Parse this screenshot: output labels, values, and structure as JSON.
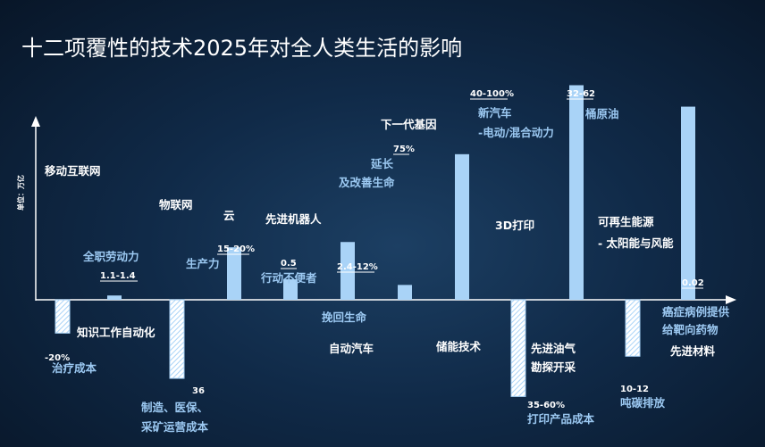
{
  "chart_data": {
    "type": "bar",
    "title": "十二项覆性的技术2025年对全人类生活的影响",
    "ylabel": "单位：万亿",
    "colors": {
      "bar_fill": "#a9d3f7",
      "white_text": "#ffffff",
      "blue_text": "#9cc9f2",
      "axis": "#ffffff"
    },
    "technologies": [
      {
        "label_lines": [
          "移动互联网"
        ],
        "label_color": "white"
      },
      {
        "label_lines": [
          "知识工作自动化"
        ],
        "label_color": "white"
      },
      {
        "label_lines": [
          "物联网"
        ],
        "label_color": "white"
      },
      {
        "label_lines": [
          "云"
        ],
        "label_color": "white"
      },
      {
        "label_lines": [
          "先进机器人"
        ],
        "label_color": "white"
      },
      {
        "label_lines": [
          "自动汽车"
        ],
        "label_color": "white"
      },
      {
        "label_lines": [
          "下一代基因"
        ],
        "label_color": "white"
      },
      {
        "label_lines": [
          "储能技术"
        ],
        "label_color": "white"
      },
      {
        "label_lines": [
          "3D打印"
        ],
        "label_color": "white"
      },
      {
        "label_lines": [
          "先进油气",
          "勘探开采"
        ],
        "label_color": "white"
      },
      {
        "label_lines": [
          "可再生能源",
          "- 太阳能与风能"
        ],
        "label_color": "white"
      },
      {
        "label_lines": [
          "先进材料"
        ],
        "label_color": "white"
      }
    ],
    "series": [
      {
        "values": [
          1.3,
          15.9,
          6.2,
          17.5,
          4.5,
          44.1,
          65.0,
          58.5
        ],
        "value_labels": [
          "1.1-1.4",
          "15-20%",
          "0.5",
          "2.4-12%",
          "75%",
          "40-100%",
          "32-62",
          "0.02"
        ],
        "impact_labels": [
          [
            "全职劳动力"
          ],
          [
            "生产力"
          ],
          [
            "行动不便者"
          ],
          [
            "挽回生命"
          ],
          [
            "延长",
            "及改善生命"
          ],
          [
            "新汽车",
            "-电动/混合动力"
          ],
          [
            "桶原油"
          ],
          [
            "癌症病例提供",
            "给靶向药物"
          ]
        ]
      },
      {
        "values": [
          -10.1,
          -23.8,
          -29.3,
          -17.1
        ],
        "value_labels": [
          "-20%",
          "36",
          "35-60%",
          "10-12"
        ],
        "impact_labels": [
          [
            "治疗成本"
          ],
          [
            "制造、医保、",
            "采矿运营成本"
          ],
          [
            "打印产品成本"
          ],
          [
            "吨碳排放"
          ]
        ]
      }
    ]
  }
}
